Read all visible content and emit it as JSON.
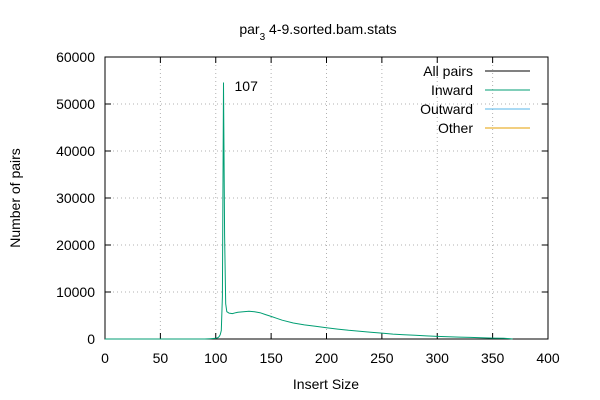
{
  "chart_data": {
    "type": "line",
    "title": "par_3 4-9.sorted.bam.stats",
    "title_main": "par",
    "title_sub": "3",
    "title_rest": " 4-9.sorted.bam.stats",
    "xlabel": "Insert Size",
    "ylabel": "Number of pairs",
    "xlim": [
      0,
      400
    ],
    "ylim": [
      0,
      60000
    ],
    "xticks": [
      0,
      50,
      100,
      150,
      200,
      250,
      300,
      350,
      400
    ],
    "yticks": [
      0,
      10000,
      20000,
      30000,
      40000,
      50000,
      60000
    ],
    "grid": true,
    "legend_position": "top-right",
    "annotation": {
      "text": "107",
      "x": 107,
      "y": 54500
    },
    "series": [
      {
        "name": "All pairs",
        "color": "#000000",
        "points": []
      },
      {
        "name": "Inward",
        "color": "#009e73",
        "points": [
          [
            0,
            0
          ],
          [
            40,
            0
          ],
          [
            60,
            0
          ],
          [
            80,
            0
          ],
          [
            90,
            0
          ],
          [
            95,
            60
          ],
          [
            100,
            150
          ],
          [
            102,
            300
          ],
          [
            103,
            500
          ],
          [
            104,
            900
          ],
          [
            105,
            1800
          ],
          [
            106,
            9000
          ],
          [
            107,
            54500
          ],
          [
            108,
            22000
          ],
          [
            109,
            7500
          ],
          [
            110,
            5800
          ],
          [
            112,
            5500
          ],
          [
            115,
            5400
          ],
          [
            118,
            5600
          ],
          [
            120,
            5700
          ],
          [
            125,
            5800
          ],
          [
            130,
            5900
          ],
          [
            135,
            5800
          ],
          [
            140,
            5600
          ],
          [
            145,
            5200
          ],
          [
            150,
            4800
          ],
          [
            155,
            4400
          ],
          [
            160,
            4000
          ],
          [
            170,
            3400
          ],
          [
            180,
            3000
          ],
          [
            190,
            2700
          ],
          [
            200,
            2400
          ],
          [
            210,
            2100
          ],
          [
            220,
            1850
          ],
          [
            230,
            1650
          ],
          [
            240,
            1450
          ],
          [
            250,
            1250
          ],
          [
            260,
            1050
          ],
          [
            270,
            900
          ],
          [
            280,
            780
          ],
          [
            290,
            660
          ],
          [
            300,
            560
          ],
          [
            310,
            480
          ],
          [
            320,
            400
          ],
          [
            330,
            330
          ],
          [
            340,
            260
          ],
          [
            350,
            200
          ],
          [
            360,
            140
          ],
          [
            365,
            90
          ],
          [
            368,
            0
          ]
        ]
      },
      {
        "name": "Outward",
        "color": "#56b4e9",
        "points": []
      },
      {
        "name": "Other",
        "color": "#e69f00",
        "points": []
      }
    ]
  }
}
